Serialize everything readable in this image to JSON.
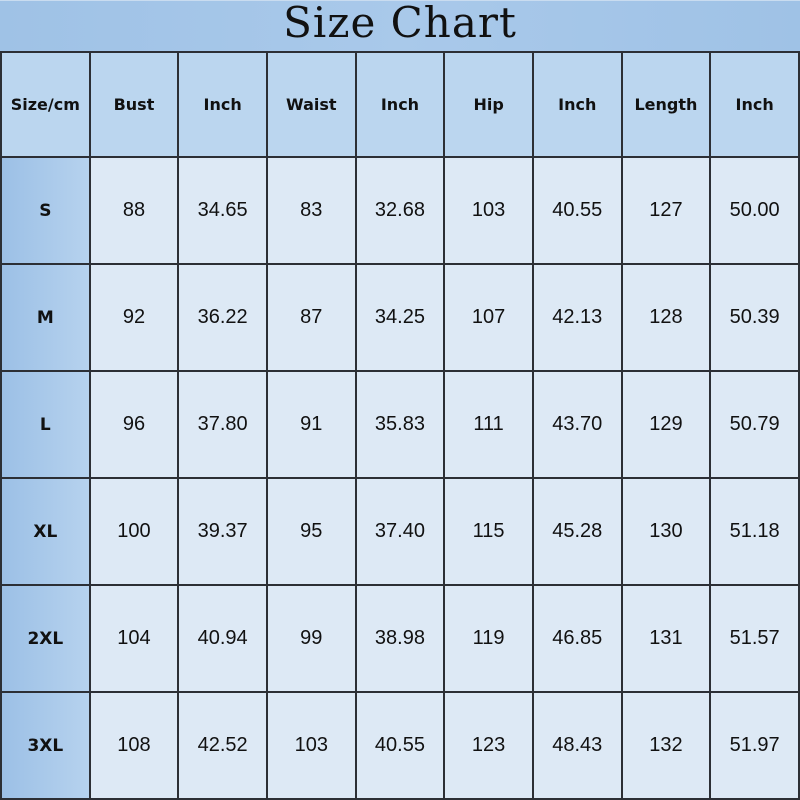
{
  "title": "Size Chart",
  "headers": [
    "Size/cm",
    "Bust",
    "Inch",
    "Waist",
    "Inch",
    "Hip",
    "Inch",
    "Length",
    "Inch"
  ],
  "rows": [
    [
      "S",
      "88",
      "34.65",
      "83",
      "32.68",
      "103",
      "40.55",
      "127",
      "50.00"
    ],
    [
      "M",
      "92",
      "36.22",
      "87",
      "34.25",
      "107",
      "42.13",
      "128",
      "50.39"
    ],
    [
      "L",
      "96",
      "37.80",
      "91",
      "35.83",
      "111",
      "43.70",
      "129",
      "50.79"
    ],
    [
      "XL",
      "100",
      "39.37",
      "95",
      "37.40",
      "115",
      "45.28",
      "130",
      "51.18"
    ],
    [
      "2XL",
      "104",
      "40.94",
      "99",
      "38.98",
      "119",
      "46.85",
      "131",
      "51.57"
    ],
    [
      "3XL",
      "108",
      "42.52",
      "103",
      "40.55",
      "123",
      "48.43",
      "132",
      "51.97"
    ]
  ],
  "colors": {
    "title_band": "#a9c9ea",
    "header": "#bbd6ef",
    "size_column": "#9cc0e6",
    "cell": "#dde9f5",
    "grid": "#2c2f35"
  }
}
